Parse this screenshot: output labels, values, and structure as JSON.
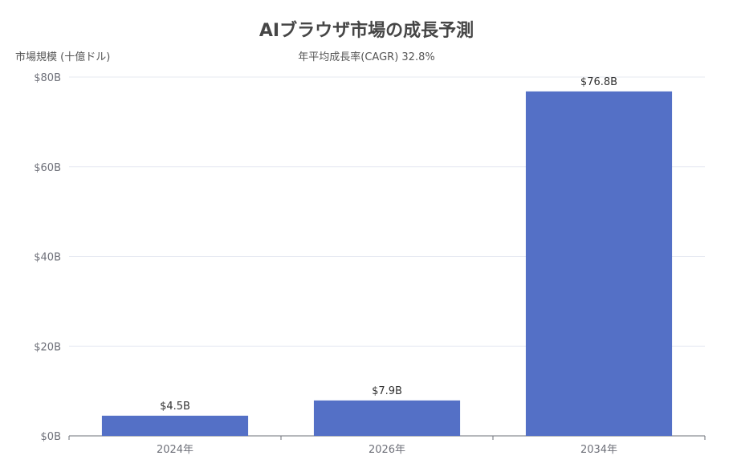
{
  "chart_data": {
    "type": "bar",
    "title": "AIブラウザ市場の成長予測",
    "subtitle": "年平均成長率(CAGR) 32.8%",
    "ylabel": "市場規模 (十億ドル)",
    "xlabel": "",
    "categories": [
      "2024年",
      "2026年",
      "2034年"
    ],
    "values": [
      4.5,
      7.9,
      76.8
    ],
    "data_labels": [
      "$4.5B",
      "$7.9B",
      "$76.8B"
    ],
    "ylim": [
      0,
      80
    ],
    "yticks": [
      0,
      20,
      40,
      60,
      80
    ],
    "ytick_labels": [
      "$0B",
      "$20B",
      "$40B",
      "$60B",
      "$80B"
    ],
    "grid": true,
    "legend": "none",
    "colors": {
      "bar": "#5470c6",
      "grid": "#e6e9f2",
      "axis": "#6e7079",
      "tick_text": "#6e7079",
      "label_text": "#333333",
      "title": "#464646"
    }
  }
}
